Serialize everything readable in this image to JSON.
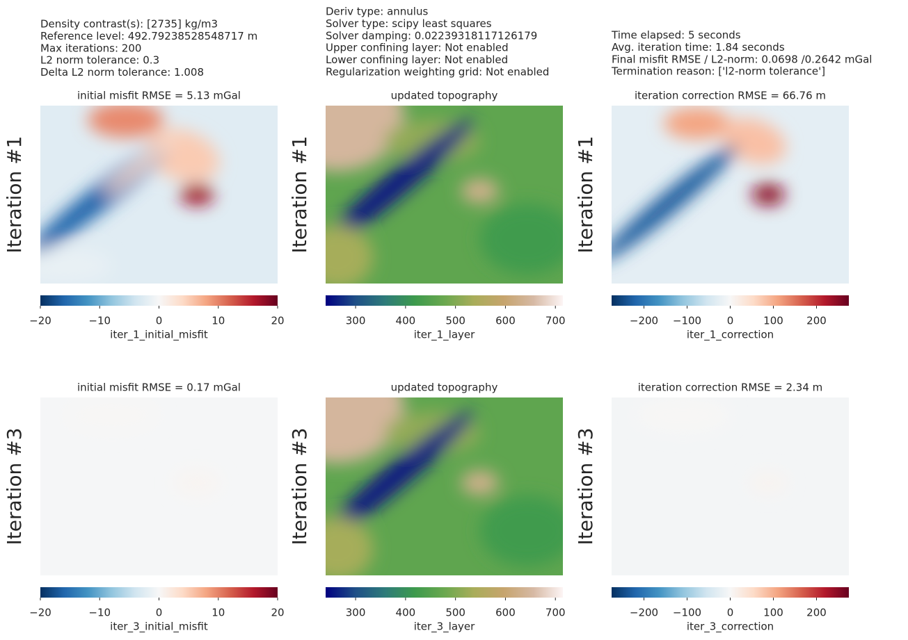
{
  "annotations": {
    "left": [
      "Density contrast(s): [2735] kg/m3",
      "Reference level: 492.79238528548717 m",
      "Max iterations: 200",
      "L2 norm tolerance: 0.3",
      "Delta L2 norm tolerance: 1.008"
    ],
    "middle": [
      "Deriv type: annulus",
      "Solver type: scipy least squares",
      "Solver damping: 0.022393181171261​79",
      "Upper confining layer: Not enabled",
      "Lower confining layer: Not enabled",
      "Regularization weighting grid: Not enabled"
    ],
    "right": [
      "Time elapsed: 5 seconds",
      "Avg. iteration time: 1.84 seconds",
      "Final misfit RMSE / L2-norm: 0.0698 /0.2642 mGal",
      "Termination reason: ['l2-norm tolerance']"
    ]
  },
  "chart_data": [
    {
      "type": "heatmap",
      "title": "initial misfit RMSE = 5.13 mGal",
      "ylabel": "Iteration #1",
      "colorbar": {
        "label": "iter_1_initial_misfit",
        "xlim": [
          -20,
          20
        ],
        "xticks": [
          {
            "value": -20,
            "label": "−20"
          },
          {
            "value": -10,
            "label": "−10"
          },
          0,
          10,
          20
        ],
        "colormap": [
          "#053061",
          "#2166ac",
          "#4393c3",
          "#92c5de",
          "#d1e5f0",
          "#f7f7f7",
          "#fddbc7",
          "#f4a582",
          "#d6604d",
          "#b2182b",
          "#67001f"
        ]
      }
    },
    {
      "type": "heatmap",
      "title": "updated topography",
      "ylabel": "Iteration #1",
      "colorbar": {
        "label": "iter_1_layer",
        "xlim": [
          240,
          715
        ],
        "xticks": [
          300,
          400,
          500,
          600,
          700
        ],
        "colormap": [
          "#000080",
          "#1f4f87",
          "#2e7b7a",
          "#3d9a4d",
          "#6aa84f",
          "#a9ad5a",
          "#c6a46d",
          "#d6b9a4",
          "#fdf5f5"
        ]
      }
    },
    {
      "type": "heatmap",
      "title": "iteration correction RMSE = 66.76 m",
      "ylabel": "Iteration #1",
      "colorbar": {
        "label": "iter_1_correction",
        "xlim": [
          -275,
          275
        ],
        "xticks": [
          {
            "value": -200,
            "label": "−200"
          },
          {
            "value": -100,
            "label": "−100"
          },
          0,
          100,
          200
        ],
        "colormap": [
          "#053061",
          "#2166ac",
          "#4393c3",
          "#92c5de",
          "#d1e5f0",
          "#f7f7f7",
          "#fddbc7",
          "#f4a582",
          "#d6604d",
          "#b2182b",
          "#67001f"
        ]
      }
    },
    {
      "type": "heatmap",
      "title": "initial misfit RMSE = 0.17 mGal",
      "ylabel": "Iteration #3",
      "colorbar": {
        "label": "iter_3_initial_misfit",
        "xlim": [
          -20,
          20
        ],
        "xticks": [
          {
            "value": -20,
            "label": "−20"
          },
          {
            "value": -10,
            "label": "−10"
          },
          0,
          10,
          20
        ],
        "colormap": [
          "#053061",
          "#2166ac",
          "#4393c3",
          "#92c5de",
          "#d1e5f0",
          "#f7f7f7",
          "#fddbc7",
          "#f4a582",
          "#d6604d",
          "#b2182b",
          "#67001f"
        ]
      }
    },
    {
      "type": "heatmap",
      "title": "updated topography",
      "ylabel": "Iteration #3",
      "colorbar": {
        "label": "iter_3_layer",
        "xlim": [
          240,
          715
        ],
        "xticks": [
          300,
          400,
          500,
          600,
          700
        ],
        "colormap": [
          "#000080",
          "#1f4f87",
          "#2e7b7a",
          "#3d9a4d",
          "#6aa84f",
          "#a9ad5a",
          "#c6a46d",
          "#d6b9a4",
          "#fdf5f5"
        ]
      }
    },
    {
      "type": "heatmap",
      "title": "iteration correction RMSE = 2.34 m",
      "ylabel": "Iteration #3",
      "colorbar": {
        "label": "iter_3_correction",
        "xlim": [
          -275,
          275
        ],
        "xticks": [
          {
            "value": -200,
            "label": "−200"
          },
          {
            "value": -100,
            "label": "−100"
          },
          0,
          100,
          200
        ],
        "colormap": [
          "#053061",
          "#2166ac",
          "#4393c3",
          "#92c5de",
          "#d1e5f0",
          "#f7f7f7",
          "#fddbc7",
          "#f4a582",
          "#d6604d",
          "#b2182b",
          "#67001f"
        ]
      }
    }
  ]
}
